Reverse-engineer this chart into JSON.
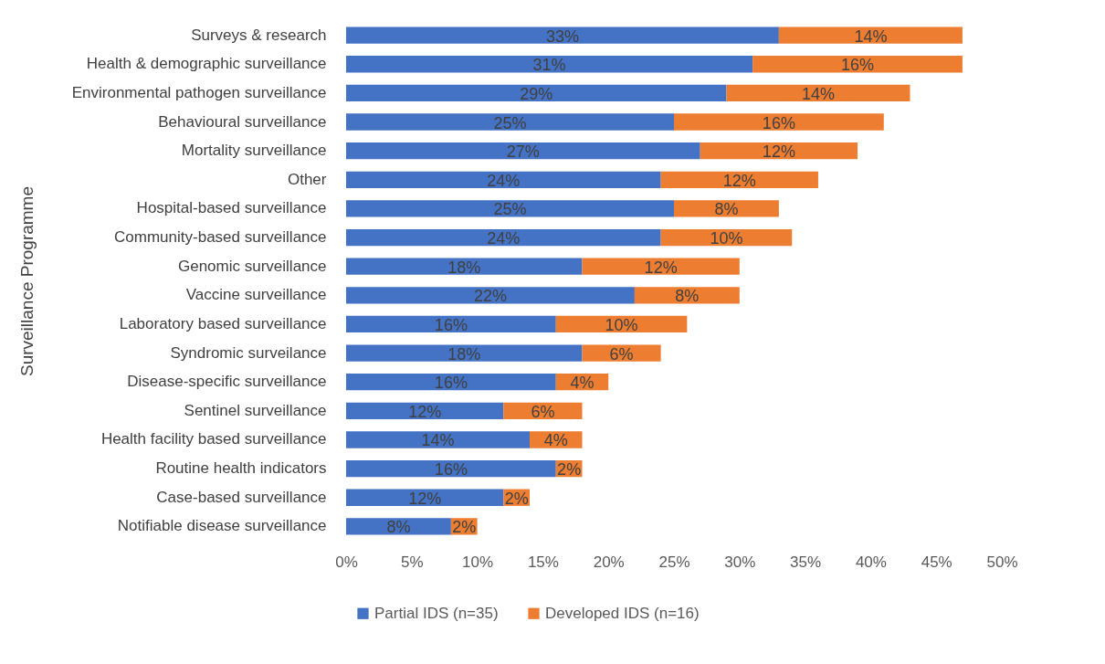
{
  "chart_data": {
    "type": "bar",
    "orientation": "horizontal",
    "stacked": true,
    "ylabel": "Surveillance Programme",
    "categories": [
      "Surveys & research",
      "Health & demographic surveillance",
      "Environmental pathogen surveillance",
      "Behavioural surveillance",
      "Mortality surveillance",
      "Other",
      "Hospital-based surveillance",
      "Community-based surveillance",
      "Genomic surveillance",
      "Vaccine surveillance",
      "Laboratory based surveillance",
      "Syndromic surveilance",
      "Disease-specific surveillance",
      "Sentinel surveillance",
      "Health facility based surveillance",
      "Routine health indicators",
      "Case-based surveillance",
      "Notifiable disease surveillance"
    ],
    "series": [
      {
        "name": "Partial IDS (n=35)",
        "color": "#4472c4",
        "values": [
          33,
          31,
          29,
          25,
          27,
          24,
          25,
          24,
          18,
          22,
          16,
          18,
          16,
          12,
          14,
          16,
          12,
          8
        ],
        "value_labels": [
          "33%",
          "31%",
          "29%",
          "25%",
          "27%",
          "24%",
          "25%",
          "24%",
          "18%",
          "22%",
          "16%",
          "18%",
          "16%",
          "12%",
          "14%",
          "16%",
          "12%",
          "8%"
        ]
      },
      {
        "name": "Developed IDS (n=16)",
        "color": "#ed7d31",
        "values": [
          14,
          16,
          14,
          16,
          12,
          12,
          8,
          10,
          12,
          8,
          10,
          6,
          4,
          6,
          4,
          2,
          2,
          2
        ],
        "value_labels": [
          "14%",
          "16%",
          "14%",
          "16%",
          "12%",
          "12%",
          "8%",
          "10%",
          "12%",
          "8%",
          "10%",
          "6%",
          "4%",
          "6%",
          "4%",
          "2%",
          "2%",
          "2%"
        ]
      }
    ],
    "xlim": [
      0,
      50
    ],
    "xticks": [
      {
        "value": 0,
        "label": "0%"
      },
      {
        "value": 5,
        "label": "5%"
      },
      {
        "value": 10,
        "label": "10%"
      },
      {
        "value": 15,
        "label": "15%"
      },
      {
        "value": 20,
        "label": "20%"
      },
      {
        "value": 25,
        "label": "25%"
      },
      {
        "value": 30,
        "label": "30%"
      },
      {
        "value": 35,
        "label": "35%"
      },
      {
        "value": 40,
        "label": "40%"
      },
      {
        "value": 45,
        "label": "45%"
      },
      {
        "value": 50,
        "label": "50%"
      }
    ],
    "grid": false,
    "legend": "bottom"
  }
}
